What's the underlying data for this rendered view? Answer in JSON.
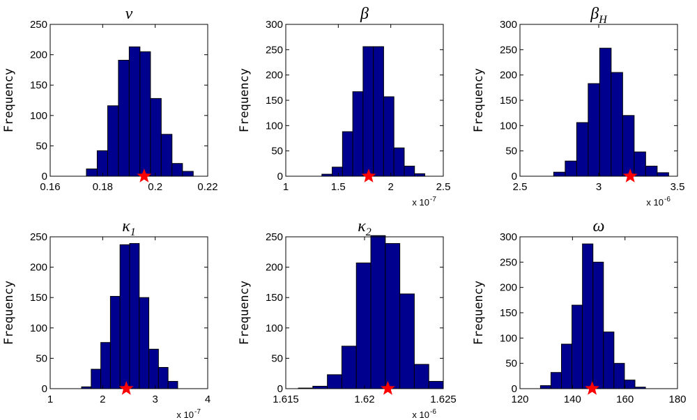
{
  "chart_data": [
    {
      "type": "histogram",
      "title": "ν",
      "ylabel": "Frequency",
      "color": "#00008f",
      "bins": [
        0.1738,
        0.1779,
        0.1819,
        0.186,
        0.1901,
        0.1942,
        0.1982,
        0.2023,
        0.2064,
        0.2104,
        0.2145
      ],
      "values": [
        12,
        42,
        116,
        191,
        213,
        205,
        128,
        69,
        21,
        8
      ],
      "xlim": [
        0.16,
        0.22
      ],
      "xticks": [
        0.16,
        0.18,
        0.2,
        0.22
      ],
      "ylim": [
        0,
        250
      ],
      "yticks": [
        0,
        50,
        100,
        150,
        200,
        250
      ],
      "star_x": 0.1958,
      "star_color": "#ff0000"
    },
    {
      "type": "histogram",
      "title": "β",
      "ylabel": "Frequency",
      "color": "#00008f",
      "bins": [
        1.344,
        1.442,
        1.54,
        1.638,
        1.736,
        1.834,
        1.932,
        2.03,
        2.128,
        2.226,
        2.324
      ],
      "values": [
        4,
        18,
        88,
        167,
        256,
        256,
        157,
        56,
        20,
        5
      ],
      "xlim": [
        1,
        2.5
      ],
      "xticks": [
        1,
        1.5,
        2,
        2.5
      ],
      "ylim": [
        0,
        300
      ],
      "yticks": [
        0,
        50,
        100,
        150,
        200,
        250,
        300
      ],
      "x_multiplier": "x 10",
      "x_exponent": "-7",
      "star_x": 1.79,
      "star_color": "#ff0000"
    },
    {
      "type": "histogram",
      "title": "β",
      "title_sub": "H",
      "ylabel": "Frequency",
      "color": "#00008f",
      "bins": [
        2.714,
        2.787,
        2.86,
        2.933,
        3.006,
        3.079,
        3.152,
        3.225,
        3.298,
        3.371,
        3.444
      ],
      "values": [
        8,
        30,
        106,
        183,
        253,
        205,
        120,
        48,
        20,
        7
      ],
      "xlim": [
        2.5,
        3.5
      ],
      "xticks": [
        2.5,
        3,
        3.5
      ],
      "ylim": [
        0,
        300
      ],
      "yticks": [
        0,
        50,
        100,
        150,
        200,
        250,
        300
      ],
      "x_multiplier": "x 10",
      "x_exponent": "-6",
      "star_x": 3.2,
      "star_color": "#ff0000"
    },
    {
      "type": "histogram",
      "title": "κ",
      "title_sub": "1",
      "ylabel": "Frequency",
      "color": "#00008f",
      "bins": [
        1.598,
        1.781,
        1.964,
        2.147,
        2.33,
        2.513,
        2.696,
        2.879,
        3.062,
        3.245,
        3.428
      ],
      "values": [
        3,
        32,
        76,
        152,
        237,
        239,
        150,
        65,
        35,
        12
      ],
      "xlim": [
        1,
        4
      ],
      "xticks": [
        1,
        2,
        3,
        4
      ],
      "ylim": [
        0,
        250
      ],
      "yticks": [
        0,
        50,
        100,
        150,
        200,
        250
      ],
      "x_multiplier": "x 10",
      "x_exponent": "-7",
      "star_x": 2.45,
      "star_color": "#ff0000"
    },
    {
      "type": "histogram",
      "title": "κ",
      "title_sub": "2",
      "ylabel": "Frequency",
      "color": "#00008f",
      "bins": [
        1.6158,
        1.61672,
        1.61764,
        1.61856,
        1.61948,
        1.6204,
        1.62132,
        1.62224,
        1.62316,
        1.62408,
        1.625
      ],
      "values": [
        1,
        4,
        23,
        70,
        207,
        252,
        239,
        156,
        40,
        12
      ],
      "xlim": [
        1.615,
        1.625
      ],
      "xticks": [
        1.615,
        1.62,
        1.625
      ],
      "ylim": [
        0,
        250
      ],
      "yticks": [
        0,
        50,
        100,
        150,
        200,
        250
      ],
      "x_multiplier": "x 10",
      "x_exponent": "-6",
      "star_x": 1.62148,
      "star_color": "#ff0000"
    },
    {
      "type": "histogram",
      "title": "ω",
      "ylabel": "Frequency",
      "color": "#00008f",
      "bins": [
        127.8,
        131.8,
        135.8,
        139.8,
        143.8,
        147.8,
        151.8,
        155.8,
        159.8,
        163.8,
        167.8
      ],
      "values": [
        6,
        32,
        88,
        165,
        286,
        250,
        112,
        50,
        17,
        3
      ],
      "xlim": [
        120,
        180
      ],
      "xticks": [
        120,
        140,
        160,
        180
      ],
      "ylim": [
        0,
        300
      ],
      "yticks": [
        0,
        50,
        100,
        150,
        200,
        250,
        300
      ],
      "star_x": 147.5,
      "star_color": "#ff0000"
    }
  ]
}
